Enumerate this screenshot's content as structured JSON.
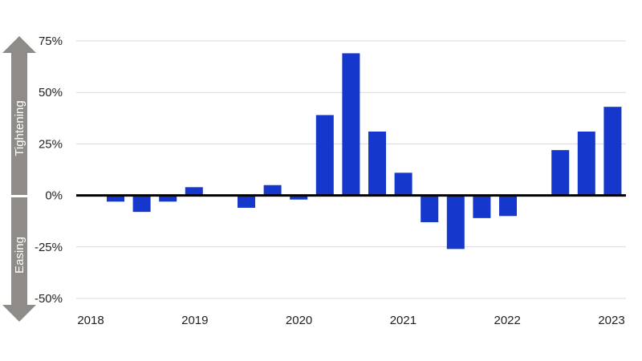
{
  "chart_data": {
    "type": "bar",
    "title": "",
    "xlabel": "",
    "ylabel": "",
    "ylim": [
      -50,
      75
    ],
    "y_ticks": [
      75,
      50,
      25,
      0,
      -25,
      -50
    ],
    "y_tick_labels": [
      "75%",
      "50%",
      "25%",
      "0%",
      "-25%",
      "-50%"
    ],
    "x_tick_labels": [
      "2018",
      "2019",
      "2020",
      "2021",
      "2022",
      "2023"
    ],
    "grid": "horizontal",
    "series": [
      {
        "values": [
          -3,
          -8,
          -3,
          4,
          0,
          -6,
          5,
          -2,
          39,
          69,
          31,
          11,
          -13,
          -26,
          -11,
          -10,
          0,
          22,
          31,
          43
        ]
      }
    ],
    "colors": {
      "bar": "#1537cc",
      "arrow": "#8f8b87",
      "grid": "#d9d9d9",
      "zero_line": "#000000"
    },
    "arrow_labels": {
      "up": "Tightening",
      "down": "Easing"
    }
  }
}
